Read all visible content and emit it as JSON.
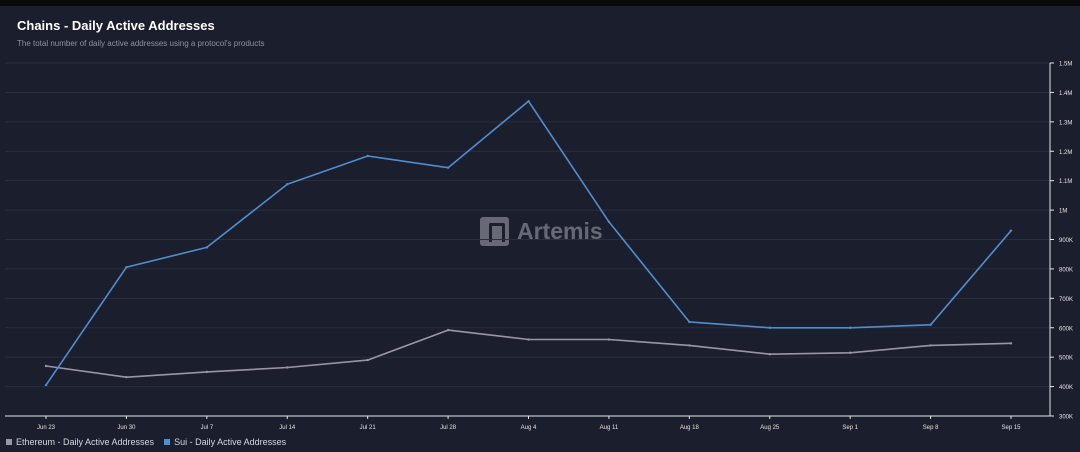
{
  "header": {
    "title": "Chains - Daily Active Addresses",
    "subtitle": "The total number of daily active addresses using a protocol's products"
  },
  "watermark": {
    "text": "Artemis"
  },
  "colors": {
    "ethereum": "#9b95ab",
    "sui": "#4f8ed0",
    "grid": "#2a2e3e",
    "axis": "#e6e6e6"
  },
  "chart_data": {
    "type": "line",
    "title": "Chains - Daily Active Addresses",
    "subtitle": "The total number of daily active addresses using a protocol's products",
    "categories": [
      "Jun 23",
      "Jun 30",
      "Jul 7",
      "Jul 14",
      "Jul 21",
      "Jul 28",
      "Aug 4",
      "Aug 11",
      "Aug 18",
      "Aug 25",
      "Sep 1",
      "Sep 8",
      "Sep 15"
    ],
    "y_ticks": [
      "300K",
      "400K",
      "500K",
      "600K",
      "700K",
      "800K",
      "900K",
      "1M",
      "1.1M",
      "1.2M",
      "1.3M",
      "1.4M",
      "1.5M"
    ],
    "ylim": [
      300000,
      1500000
    ],
    "y_axis_position": "right",
    "grid": true,
    "legend_position": "bottom-left",
    "series": [
      {
        "name": "Ethereum - Daily Active Addresses",
        "color": "#9b95ab",
        "values": [
          470000,
          432000,
          450000,
          465000,
          490000,
          592000,
          560000,
          560000,
          540000,
          510000,
          515000,
          540000,
          547000
        ]
      },
      {
        "name": "Sui - Daily Active Addresses",
        "color": "#4f8ed0",
        "values": [
          405000,
          806000,
          873000,
          1088000,
          1184000,
          1144000,
          1370000,
          960000,
          620000,
          600000,
          600000,
          610000,
          930000
        ]
      }
    ]
  }
}
